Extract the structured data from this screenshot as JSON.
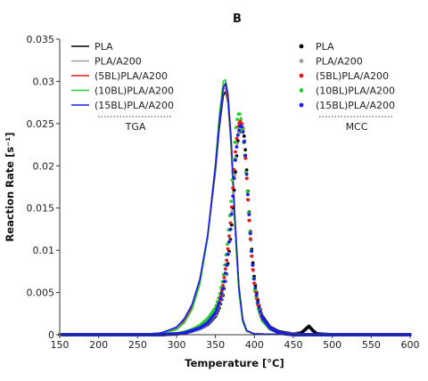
{
  "chart_data": {
    "type": "line",
    "title": "B",
    "xlabel": "Temperature [°C]",
    "ylabel": "Reaction Rate [s⁻¹]",
    "xlim": [
      150,
      600
    ],
    "ylim": [
      0,
      0.035
    ],
    "xticks": [
      "150",
      "200",
      "250",
      "300",
      "350",
      "400",
      "450",
      "500",
      "550",
      "600"
    ],
    "yticks": [
      "0",
      "0.005",
      "0.01",
      "0.015",
      "0.02",
      "0.025",
      "0.03",
      "0.035"
    ],
    "legend_groups": [
      {
        "caption": "TGA",
        "position": "top-left",
        "style": "line",
        "entries": [
          "PLA",
          "PLA/A200",
          "(5BL)PLA/A200",
          "(10BL)PLA/A200",
          "(15BL)PLA/A200"
        ]
      },
      {
        "caption": "MCC",
        "position": "top-right",
        "style": "marker",
        "entries": [
          "PLA",
          "PLA/A200",
          "(5BL)PLA/A200",
          "(10BL)PLA/A200",
          "(15BL)PLA/A200"
        ]
      }
    ],
    "colors": {
      "PLA": "#000000",
      "PLA/A200": "#a0a0a0",
      "(5BL)PLA/A200": "#e01818",
      "(10BL)PLA/A200": "#28d028",
      "(15BL)PLA/A200": "#1a1af0"
    },
    "series_tga": [
      {
        "name": "PLA",
        "peak_x": 361,
        "peak_y": 0.0288,
        "x": [
          150,
          250,
          280,
          300,
          310,
          320,
          330,
          340,
          350,
          355,
          360,
          363,
          366,
          370,
          375,
          380,
          385,
          390,
          400,
          450,
          470,
          600
        ],
        "y": [
          0,
          0,
          0.0002,
          0.0008,
          0.0018,
          0.0035,
          0.0065,
          0.0115,
          0.0195,
          0.0245,
          0.0283,
          0.0288,
          0.0275,
          0.0225,
          0.013,
          0.0055,
          0.0018,
          0.0005,
          0.0001,
          0,
          0,
          0
        ]
      },
      {
        "name": "PLA/A200",
        "peak_x": 360,
        "peak_y": 0.0292,
        "x": [
          150,
          250,
          280,
          300,
          310,
          320,
          330,
          340,
          350,
          355,
          360,
          363,
          366,
          370,
          375,
          380,
          385,
          390,
          400,
          450,
          600
        ],
        "y": [
          0,
          0,
          0.0001,
          0.0007,
          0.0016,
          0.0033,
          0.0063,
          0.0115,
          0.0198,
          0.025,
          0.029,
          0.0292,
          0.0277,
          0.0224,
          0.0128,
          0.0052,
          0.0016,
          0.0004,
          0.0001,
          0,
          0
        ]
      },
      {
        "name": "(5BL)PLA/A200",
        "peak_x": 360,
        "peak_y": 0.0296,
        "x": [
          150,
          250,
          280,
          300,
          310,
          320,
          330,
          340,
          350,
          355,
          360,
          363,
          366,
          370,
          375,
          380,
          385,
          390,
          400,
          450,
          600
        ],
        "y": [
          0,
          0,
          0.0001,
          0.0006,
          0.0015,
          0.0032,
          0.0062,
          0.0116,
          0.0202,
          0.0255,
          0.0294,
          0.0296,
          0.028,
          0.0226,
          0.0128,
          0.0052,
          0.0016,
          0.0004,
          0.0001,
          0,
          0
        ]
      },
      {
        "name": "(10BL)PLA/A200",
        "peak_x": 360,
        "peak_y": 0.0302,
        "x": [
          150,
          250,
          280,
          300,
          310,
          320,
          330,
          340,
          350,
          355,
          360,
          363,
          366,
          370,
          375,
          380,
          385,
          390,
          400,
          450,
          600
        ],
        "y": [
          0,
          0,
          0.0001,
          0.0006,
          0.0014,
          0.003,
          0.006,
          0.0115,
          0.0203,
          0.026,
          0.03,
          0.0302,
          0.0285,
          0.0228,
          0.0128,
          0.005,
          0.0015,
          0.0004,
          0.0001,
          0,
          0
        ]
      },
      {
        "name": "(15BL)PLA/A200",
        "peak_x": 361,
        "peak_y": 0.0298,
        "x": [
          150,
          250,
          280,
          300,
          310,
          320,
          330,
          340,
          350,
          355,
          360,
          363,
          366,
          370,
          375,
          380,
          385,
          390,
          400,
          450,
          600
        ],
        "y": [
          0,
          0,
          0.0002,
          0.0009,
          0.0019,
          0.0036,
          0.0066,
          0.0118,
          0.02,
          0.0252,
          0.0292,
          0.0298,
          0.0285,
          0.0235,
          0.0138,
          0.0058,
          0.0018,
          0.0005,
          0.0001,
          0,
          0
        ]
      }
    ],
    "series_mcc": [
      {
        "name": "PLA",
        "peak_x": 384,
        "peak_y": 0.0249,
        "bump": {
          "x": 470,
          "y": 0.001
        },
        "x": [
          150,
          200,
          250,
          280,
          300,
          310,
          320,
          330,
          340,
          350,
          355,
          360,
          365,
          370,
          373,
          376,
          379,
          382,
          384,
          386,
          388,
          390,
          393,
          396,
          400,
          405,
          410,
          420,
          430,
          440,
          450,
          460,
          465,
          470,
          475,
          480,
          500,
          550,
          600
        ],
        "y": [
          0,
          0,
          0,
          0,
          0.0001,
          0.0002,
          0.0004,
          0.0007,
          0.0012,
          0.0022,
          0.0032,
          0.0048,
          0.0075,
          0.012,
          0.0158,
          0.0198,
          0.0232,
          0.0248,
          0.0249,
          0.0242,
          0.0225,
          0.0195,
          0.0148,
          0.0105,
          0.0065,
          0.0038,
          0.0022,
          0.0009,
          0.0004,
          0.0002,
          0.0001,
          0.0002,
          0.0006,
          0.001,
          0.0005,
          0.0001,
          0,
          0,
          0
        ]
      },
      {
        "name": "PLA/A200",
        "peak_x": 384,
        "peak_y": 0.0251,
        "x": [
          150,
          200,
          250,
          280,
          300,
          310,
          320,
          330,
          340,
          350,
          355,
          360,
          365,
          370,
          373,
          376,
          379,
          382,
          384,
          386,
          388,
          390,
          393,
          396,
          400,
          405,
          410,
          420,
          430,
          440,
          450,
          460,
          480,
          500,
          550,
          600
        ],
        "y": [
          0,
          0,
          0,
          0,
          0.0001,
          0.0002,
          0.0004,
          0.0007,
          0.0013,
          0.0024,
          0.0035,
          0.0052,
          0.008,
          0.0125,
          0.0165,
          0.0205,
          0.0237,
          0.025,
          0.0251,
          0.0244,
          0.0226,
          0.0198,
          0.015,
          0.0106,
          0.0063,
          0.0036,
          0.002,
          0.0008,
          0.0003,
          0.0001,
          0.0001,
          0,
          0,
          0,
          0,
          0
        ]
      },
      {
        "name": "(5BL)PLA/A200",
        "peak_x": 382,
        "peak_y": 0.0253,
        "x": [
          150,
          200,
          250,
          280,
          300,
          310,
          320,
          330,
          340,
          350,
          355,
          360,
          365,
          370,
          373,
          376,
          379,
          382,
          384,
          386,
          388,
          390,
          393,
          396,
          400,
          405,
          410,
          420,
          430,
          440,
          450,
          460,
          480,
          500,
          550,
          600
        ],
        "y": [
          0,
          0,
          0,
          0,
          0.0001,
          0.0002,
          0.0005,
          0.0009,
          0.0016,
          0.0028,
          0.004,
          0.006,
          0.0092,
          0.014,
          0.0182,
          0.0222,
          0.0248,
          0.0253,
          0.0249,
          0.0236,
          0.0215,
          0.0185,
          0.0138,
          0.0097,
          0.0057,
          0.0032,
          0.0018,
          0.0007,
          0.0003,
          0.0001,
          0,
          0,
          0,
          0,
          0,
          0
        ]
      },
      {
        "name": "(10BL)PLA/A200",
        "peak_x": 380,
        "peak_y": 0.0262,
        "x": [
          150,
          200,
          250,
          280,
          300,
          310,
          320,
          330,
          340,
          350,
          355,
          360,
          365,
          370,
          373,
          376,
          379,
          381,
          383,
          385,
          388,
          390,
          393,
          396,
          400,
          405,
          410,
          420,
          430,
          440,
          450,
          460,
          480,
          500,
          550,
          600
        ],
        "y": [
          0,
          0,
          0,
          0,
          0.0001,
          0.0003,
          0.0006,
          0.0011,
          0.0019,
          0.0032,
          0.0046,
          0.0068,
          0.0105,
          0.0158,
          0.0205,
          0.0243,
          0.0261,
          0.0262,
          0.0255,
          0.0238,
          0.0208,
          0.0182,
          0.0135,
          0.0094,
          0.0055,
          0.0031,
          0.0017,
          0.0007,
          0.0003,
          0.0001,
          0,
          0,
          0,
          0,
          0,
          0
        ]
      },
      {
        "name": "(15BL)PLA/A200",
        "peak_x": 383,
        "peak_y": 0.0247,
        "x": [
          150,
          200,
          250,
          280,
          300,
          310,
          320,
          330,
          340,
          350,
          355,
          360,
          365,
          370,
          373,
          376,
          379,
          382,
          384,
          386,
          388,
          390,
          393,
          396,
          400,
          405,
          410,
          420,
          430,
          440,
          450,
          460,
          480,
          500,
          550,
          600
        ],
        "y": [
          0,
          0,
          0,
          0,
          0.0001,
          0.0002,
          0.0005,
          0.0008,
          0.0014,
          0.0026,
          0.0038,
          0.0056,
          0.0086,
          0.0132,
          0.0172,
          0.0212,
          0.0238,
          0.0247,
          0.0246,
          0.0236,
          0.0218,
          0.019,
          0.0145,
          0.0103,
          0.0062,
          0.0035,
          0.002,
          0.0008,
          0.0003,
          0.0001,
          0,
          0,
          0,
          0,
          0,
          0
        ]
      }
    ]
  }
}
